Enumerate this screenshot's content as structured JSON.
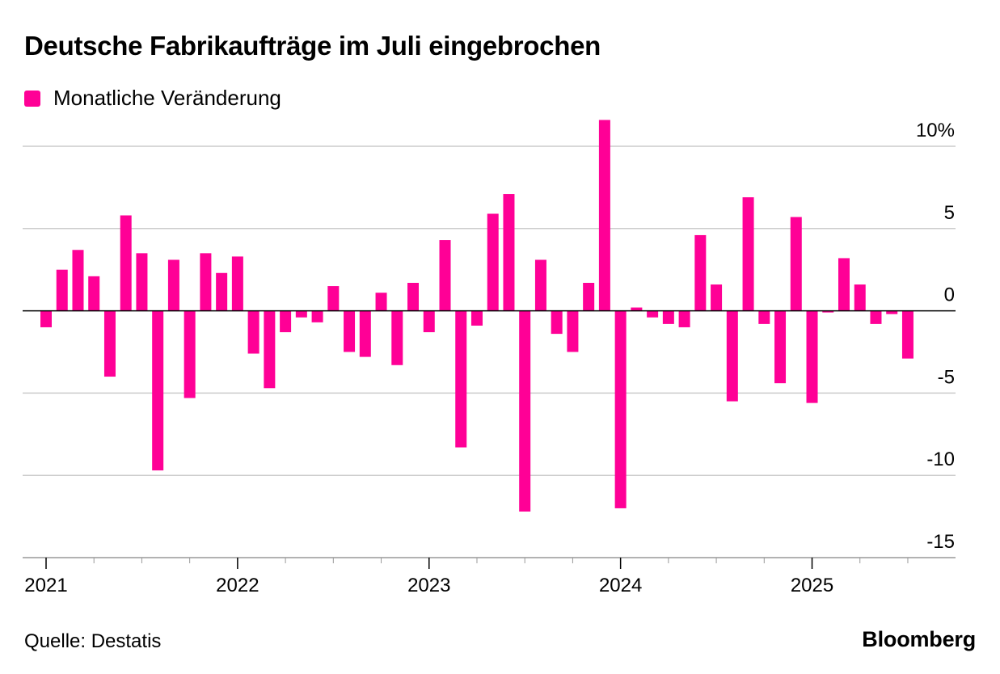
{
  "title": "Deutsche Fabrikaufträge im Juli eingebrochen",
  "legend": {
    "label": "Monatliche Veränderung"
  },
  "footer": {
    "source": "Quelle: Destatis",
    "brand": "Bloomberg"
  },
  "colors": {
    "bar": "#ff0096",
    "grid": "#cccccc",
    "axis": "#000000",
    "text": "#000000"
  },
  "chart_data": {
    "type": "bar",
    "series": [
      {
        "name": "Monatliche Veränderung",
        "values": [
          -1.0,
          2.5,
          3.7,
          2.1,
          -4.0,
          5.8,
          3.5,
          -9.7,
          3.1,
          -5.3,
          3.5,
          2.3,
          3.3,
          -2.6,
          -4.7,
          -1.3,
          -0.4,
          -0.7,
          1.5,
          -2.5,
          -2.8,
          1.1,
          -3.3,
          1.7,
          -1.3,
          4.3,
          -8.3,
          -0.9,
          5.9,
          7.1,
          -12.2,
          3.1,
          -1.4,
          -2.5,
          1.7,
          11.6,
          -12.0,
          0.2,
          -0.4,
          -0.8,
          -1.0,
          4.6,
          1.6,
          -5.5,
          6.9,
          -0.8,
          -4.4,
          5.7,
          -5.6,
          -0.1,
          3.2,
          1.6,
          -0.8,
          -0.2,
          -2.9
        ]
      }
    ],
    "x_start": "2021-01",
    "x_end": "2025-07",
    "x_tick_labels": [
      "2021",
      "2022",
      "2023",
      "2024",
      "2025"
    ],
    "ylim": [
      -15,
      10
    ],
    "y_ticks": [
      10,
      5,
      0,
      -5,
      -10,
      -15
    ],
    "y_tick_labels": [
      "10%",
      "5",
      "0",
      "-5",
      "-10",
      "-15"
    ],
    "grid": true,
    "legend_position": "top-left"
  }
}
